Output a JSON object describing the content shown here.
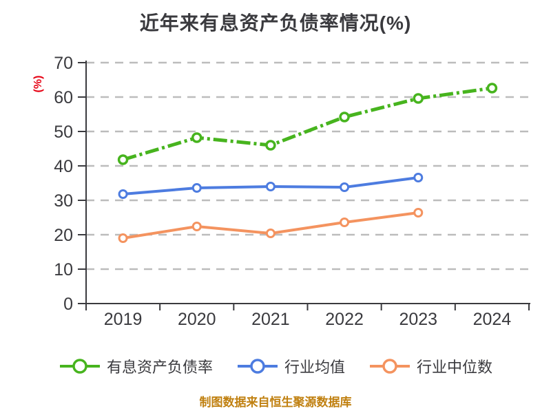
{
  "title": "近年来有息资产负债率情况(%)",
  "footer": "制图数据来自恒生聚源数据库",
  "colors": {
    "text_dark": "#3a3a3e",
    "grid": "#bcbcbc",
    "axis": "#3a3a3e",
    "ylabel_red": "#e60012",
    "footer_orange": "#c08010",
    "series_green": "#47b41e",
    "series_blue": "#4d7ce0",
    "series_orange": "#f4935f",
    "marker_fill": "#ffffff"
  },
  "chart_data": {
    "type": "line",
    "title": "近年来有息资产负债率情况(%)",
    "categories": [
      "2019",
      "2020",
      "2021",
      "2022",
      "2023",
      "2024"
    ],
    "series": [
      {
        "name": "有息资产负债率",
        "color": "#47b41e",
        "line_style": "dashdot",
        "values": [
          41.8,
          48.2,
          46.0,
          54.2,
          59.6,
          62.6
        ]
      },
      {
        "name": "行业均值",
        "color": "#4d7ce0",
        "line_style": "solid",
        "values": [
          31.8,
          33.6,
          34.0,
          33.8,
          36.6,
          null
        ]
      },
      {
        "name": "行业中位数",
        "color": "#f4935f",
        "line_style": "solid",
        "values": [
          19.0,
          22.4,
          20.4,
          23.6,
          26.4,
          null
        ]
      }
    ],
    "xlabel": "",
    "ylabel": "(%)",
    "ylim": [
      0,
      70
    ],
    "yticks": [
      0,
      10,
      20,
      30,
      40,
      50,
      60,
      70
    ],
    "grid": "horizontal dashed",
    "legend_position": "bottom",
    "marker": "circle-open"
  }
}
